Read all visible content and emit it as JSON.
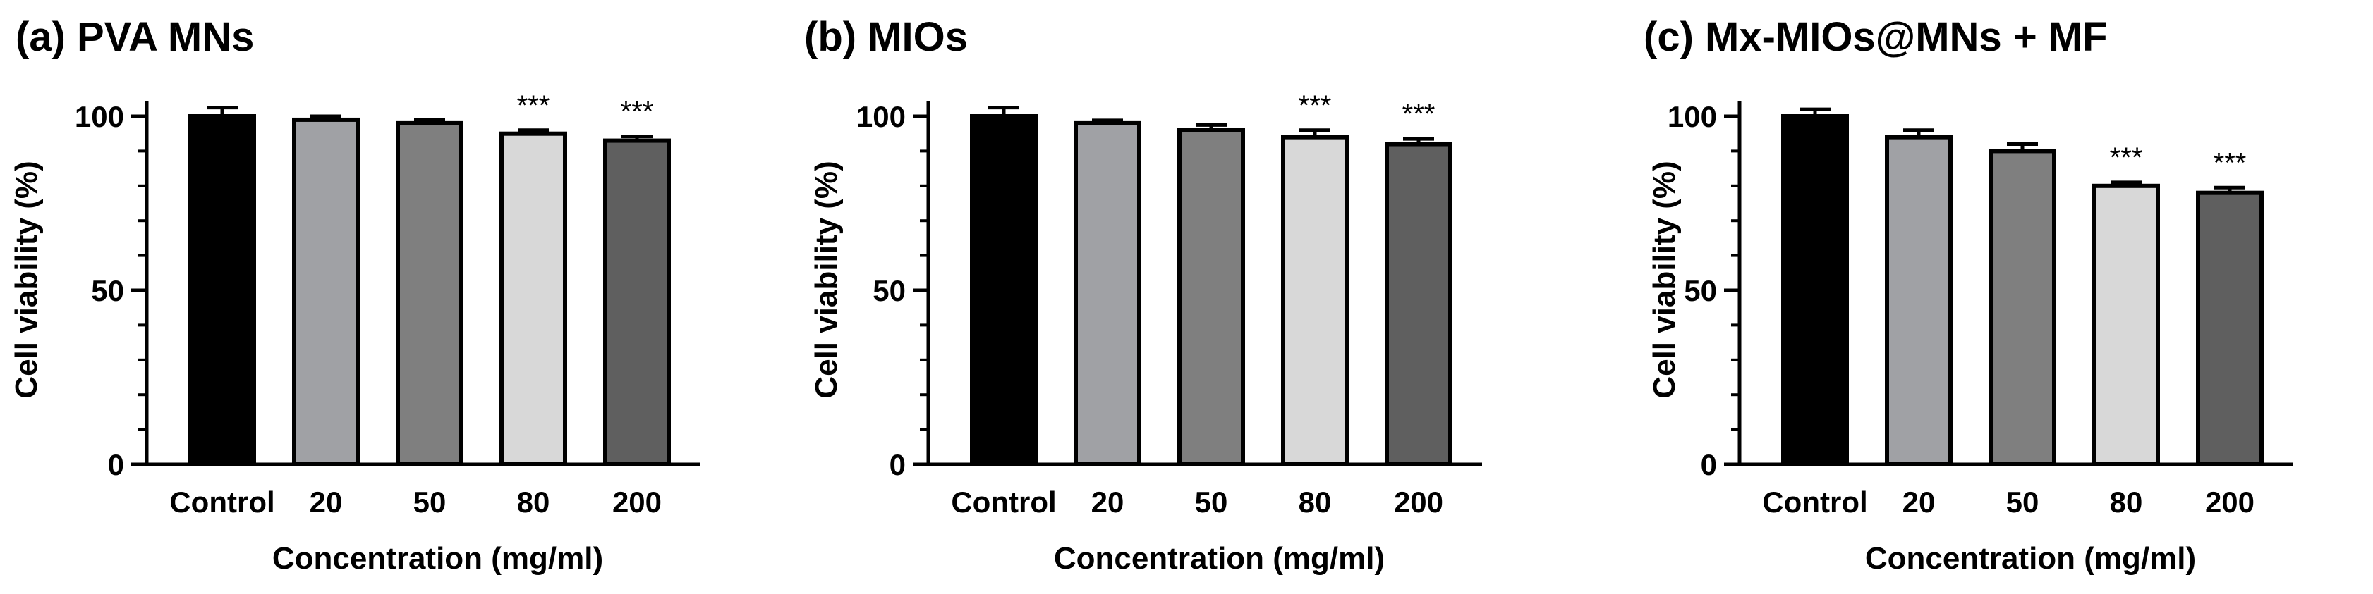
{
  "chart_data": [
    {
      "type": "bar",
      "title": "(a) PVA MNs",
      "xlabel": "Concentration (mg/ml)",
      "ylabel": "Cell viability (%)",
      "categories": [
        "Control",
        "20",
        "50",
        "80",
        "200"
      ],
      "values": [
        100,
        99,
        98,
        95,
        93
      ],
      "errors": [
        2.5,
        1,
        1,
        1,
        1.2
      ],
      "significance": [
        "",
        "",
        "",
        "***",
        "***"
      ],
      "bar_colors": [
        "#000000",
        "#a0a1a5",
        "#7f7f7f",
        "#d8d8d8",
        "#5f5f5f"
      ],
      "ylim": [
        0,
        100
      ],
      "yticks": [
        "0",
        "50",
        "100"
      ]
    },
    {
      "type": "bar",
      "title": "(b) MIOs",
      "xlabel": "Concentration (mg/ml)",
      "ylabel": "Cell viability (%)",
      "categories": [
        "Control",
        "20",
        "50",
        "80",
        "200"
      ],
      "values": [
        100,
        98,
        96,
        94,
        92
      ],
      "errors": [
        2.5,
        0.8,
        1.5,
        2,
        1.5
      ],
      "significance": [
        "",
        "",
        "",
        "***",
        "***"
      ],
      "bar_colors": [
        "#000000",
        "#a0a1a5",
        "#7f7f7f",
        "#d8d8d8",
        "#5f5f5f"
      ],
      "ylim": [
        0,
        100
      ],
      "yticks": [
        "0",
        "50",
        "100"
      ]
    },
    {
      "type": "bar",
      "title": "(c) Mx-MIOs@MNs + MF",
      "xlabel": "Concentration (mg/ml)",
      "ylabel": "Cell viability (%)",
      "categories": [
        "Control",
        "20",
        "50",
        "80",
        "200"
      ],
      "values": [
        100,
        94,
        90,
        80,
        78
      ],
      "errors": [
        2,
        2,
        2,
        1,
        1.5
      ],
      "significance": [
        "",
        "",
        "",
        "***",
        "***"
      ],
      "bar_colors": [
        "#000000",
        "#a0a1a5",
        "#7f7f7f",
        "#d8d8d8",
        "#5f5f5f"
      ],
      "ylim": [
        0,
        100
      ],
      "yticks": [
        "0",
        "50",
        "100"
      ]
    }
  ]
}
